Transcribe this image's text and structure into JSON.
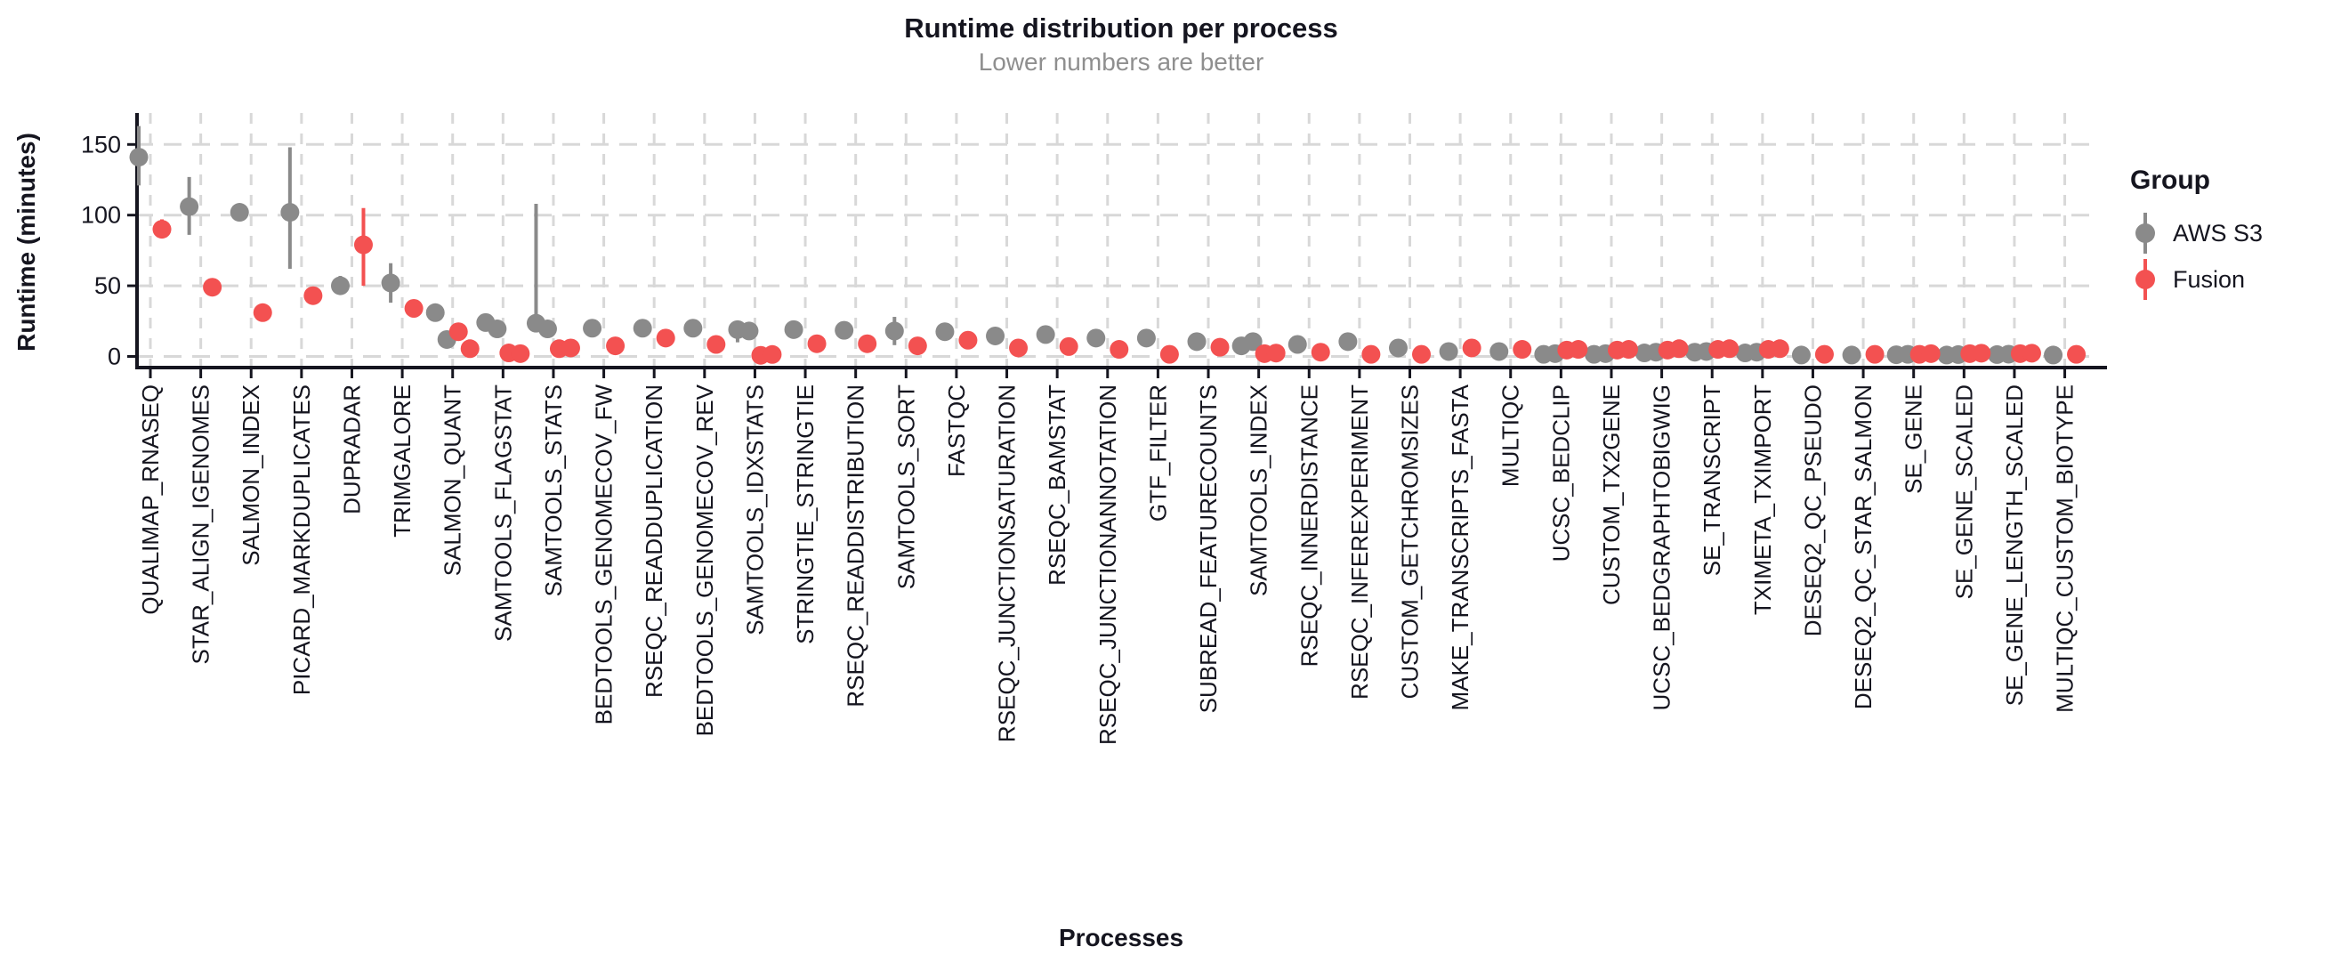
{
  "chart_data": {
    "type": "scatter",
    "title": "Runtime distribution per process",
    "subtitle": "Lower numbers are better",
    "xlabel": "Processes",
    "ylabel": "Runtime (minutes)",
    "ylim": [
      0,
      170
    ],
    "y_ticks": [
      0,
      50,
      100,
      150
    ],
    "grid": "dashed horizontal and vertical",
    "legend_title": "Group",
    "legend_position": "right",
    "point_style": "pointrange (dot with min-max bar), groups dodged side by side",
    "categories": [
      "QUALIMAP_RNASEQ",
      "STAR_ALIGN_IGENOMES",
      "SALMON_INDEX",
      "PICARD_MARKDUPLICATES",
      "DUPRADAR",
      "TRIMGALORE",
      "SALMON_QUANT",
      "SAMTOOLS_FLAGSTAT",
      "SAMTOOLS_STATS",
      "BEDTOOLS_GENOMECOV_FW",
      "RSEQC_READDUPLICATION",
      "BEDTOOLS_GENOMECOV_REV",
      "SAMTOOLS_IDXSTATS",
      "STRINGTIE_STRINGTIE",
      "RSEQC_READDISTRIBUTION",
      "SAMTOOLS_SORT",
      "FASTQC",
      "RSEQC_JUNCTIONSATURATION",
      "RSEQC_BAMSTAT",
      "RSEQC_JUNCTIONANNOTATION",
      "GTF_FILTER",
      "SUBREAD_FEATURECOUNTS",
      "SAMTOOLS_INDEX",
      "RSEQC_INNERDISTANCE",
      "RSEQC_INFEREXPERIMENT",
      "CUSTOM_GETCHROMSIZES",
      "MAKE_TRANSCRIPTS_FASTA",
      "MULTIQC",
      "UCSC_BEDCLIP",
      "CUSTOM_TX2GENE",
      "UCSC_BEDGRAPHTOBIGWIG",
      "SE_TRANSCRIPT",
      "TXIMETA_TXIMPORT",
      "DESEQ2_QC_PSEUDO",
      "DESEQ2_QC_STAR_SALMON",
      "SE_GENE",
      "SE_GENE_SCALED",
      "SE_GENE_LENGTH_SCALED",
      "MULTIQC_CUSTOM_BIOTYPE"
    ],
    "series": [
      {
        "name": "AWS S3",
        "color": "#8A8A8A",
        "data": [
          {
            "points": [
              141
            ],
            "err": [
              121,
              163
            ]
          },
          {
            "points": [
              106
            ],
            "err": [
              86,
              127
            ]
          },
          {
            "points": [
              102
            ]
          },
          {
            "points": [
              102
            ],
            "err": [
              62,
              148
            ]
          },
          {
            "points": [
              50
            ],
            "err": [
              44,
              57
            ]
          },
          {
            "points": [
              52
            ],
            "err": [
              38,
              66
            ]
          },
          {
            "points": [
              31,
              12
            ]
          },
          {
            "points": [
              24,
              19.5
            ]
          },
          {
            "points": [
              23.5,
              19.5
            ],
            "err": [
              20,
              108
            ]
          },
          {
            "points": [
              20
            ]
          },
          {
            "points": [
              20
            ]
          },
          {
            "points": [
              20
            ]
          },
          {
            "points": [
              19,
              18
            ],
            "err": [
              10,
              24
            ]
          },
          {
            "points": [
              19
            ]
          },
          {
            "points": [
              18.5
            ]
          },
          {
            "points": [
              18
            ],
            "err": [
              8,
              28
            ]
          },
          {
            "points": [
              17.5
            ]
          },
          {
            "points": [
              14.5
            ]
          },
          {
            "points": [
              15.5
            ]
          },
          {
            "points": [
              13
            ]
          },
          {
            "points": [
              13
            ]
          },
          {
            "points": [
              10.5
            ]
          },
          {
            "points": [
              7.5,
              10.5
            ]
          },
          {
            "points": [
              8.5
            ]
          },
          {
            "points": [
              10.5
            ]
          },
          {
            "points": [
              6
            ]
          },
          {
            "points": [
              3.5
            ]
          },
          {
            "points": [
              3.5
            ]
          },
          {
            "points": [
              1.5,
              2
            ]
          },
          {
            "points": [
              1.5,
              2
            ]
          },
          {
            "points": [
              2.5,
              3
            ]
          },
          {
            "points": [
              3,
              3.5
            ]
          },
          {
            "points": [
              2.5,
              3
            ]
          },
          {
            "points": [
              1
            ]
          },
          {
            "points": [
              1
            ]
          },
          {
            "points": [
              1.2,
              1.5
            ]
          },
          {
            "points": [
              1,
              1.3
            ]
          },
          {
            "points": [
              1.3,
              1.6
            ]
          },
          {
            "points": [
              1
            ]
          }
        ]
      },
      {
        "name": "Fusion",
        "color": "#F35151",
        "data": [
          {
            "points": [
              90
            ],
            "err": [
              84,
              97
            ]
          },
          {
            "points": [
              49
            ]
          },
          {
            "points": [
              31
            ]
          },
          {
            "points": [
              43
            ]
          },
          {
            "points": [
              79
            ],
            "err": [
              50,
              105
            ]
          },
          {
            "points": [
              34
            ]
          },
          {
            "points": [
              17.5,
              5.5
            ]
          },
          {
            "points": [
              2.5,
              2
            ]
          },
          {
            "points": [
              5.5,
              6
            ]
          },
          {
            "points": [
              7.5
            ]
          },
          {
            "points": [
              13
            ]
          },
          {
            "points": [
              8.5
            ]
          },
          {
            "points": [
              0.8,
              1.4
            ]
          },
          {
            "points": [
              9
            ]
          },
          {
            "points": [
              9
            ]
          },
          {
            "points": [
              7.5
            ]
          },
          {
            "points": [
              11.5
            ]
          },
          {
            "points": [
              6
            ]
          },
          {
            "points": [
              7
            ]
          },
          {
            "points": [
              5
            ]
          },
          {
            "points": [
              1.5
            ]
          },
          {
            "points": [
              6.5
            ]
          },
          {
            "points": [
              2,
              2.4
            ]
          },
          {
            "points": [
              3
            ]
          },
          {
            "points": [
              1.5
            ]
          },
          {
            "points": [
              1.5
            ]
          },
          {
            "points": [
              6
            ]
          },
          {
            "points": [
              5
            ]
          },
          {
            "points": [
              4.5,
              5
            ]
          },
          {
            "points": [
              4.5,
              5
            ]
          },
          {
            "points": [
              4.5,
              5.5
            ]
          },
          {
            "points": [
              5,
              5.5
            ]
          },
          {
            "points": [
              5,
              5.5
            ]
          },
          {
            "points": [
              1.5
            ]
          },
          {
            "points": [
              1.5
            ]
          },
          {
            "points": [
              1.5,
              2
            ]
          },
          {
            "points": [
              2,
              2.3
            ]
          },
          {
            "points": [
              2,
              2.3
            ]
          },
          {
            "points": [
              1.5
            ]
          }
        ]
      }
    ]
  },
  "legend": {
    "title": "Group",
    "items": [
      {
        "label": "AWS S3",
        "color": "#8A8A8A"
      },
      {
        "label": "Fusion",
        "color": "#F35151"
      }
    ]
  },
  "colors": {
    "axis_text": "#15151f",
    "subtitle": "#8f8f8f",
    "gridline": "#d8d8d8",
    "background": "#ffffff"
  }
}
